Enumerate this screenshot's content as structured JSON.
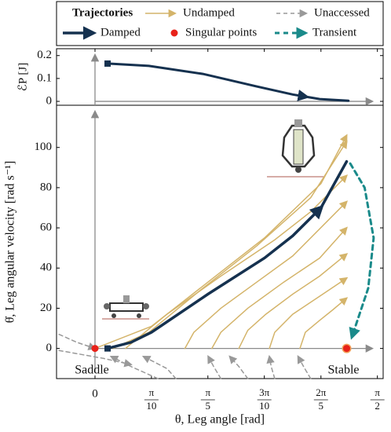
{
  "legend": {
    "title": "Trajectories"
  },
  "chart_data": [
    {
      "type": "line",
      "ylabel": "ℰP [J]",
      "xlim": [
        -0.214,
        1.603
      ],
      "ylim": [
        -0.017,
        0.23
      ],
      "yticks": [
        0,
        0.1,
        0.2
      ],
      "series": [
        {
          "color": "#15314f",
          "x": [
            0.07,
            0.3,
            0.6,
            0.9,
            1.1,
            1.25,
            1.41
          ],
          "values": [
            0.165,
            0.155,
            0.12,
            0.065,
            0.03,
            0.01,
            0.003
          ]
        }
      ]
    },
    {
      "type": "phase",
      "xlabel": "θ, Leg angle [rad]",
      "ylabel": "θ̇, Leg angular velocity [rad s⁻¹]",
      "xlim": [
        -0.214,
        1.603
      ],
      "ylim": [
        -15,
        121
      ],
      "xticks": [
        0,
        {
          "value": 0.314,
          "label": "π/10"
        },
        {
          "value": 0.628,
          "label": "π/5"
        },
        {
          "value": 0.942,
          "label": "3π/10"
        },
        {
          "value": 1.257,
          "label": "2π/5"
        },
        {
          "value": 1.571,
          "label": "π/2"
        }
      ],
      "yticks": [
        0,
        20,
        40,
        60,
        80,
        100
      ],
      "series": [
        {
          "name": "Undamped",
          "color": "#d4b46a",
          "style": "solid",
          "lines": [
            {
              "x": [
                0,
                0.314,
                0.628,
                0.943,
                1.257,
                1.4
              ],
              "values": [
                0,
                11,
                33,
                55,
                82,
                106
              ]
            },
            {
              "x": [
                0.1,
                0.3,
                0.6,
                0.9,
                1.2,
                1.4
              ],
              "values": [
                0,
                8,
                30,
                51,
                75,
                103
              ]
            },
            {
              "x": [
                0.17,
                0.25,
                0.4,
                0.7,
                1.0,
                1.2,
                1.4
              ],
              "values": [
                0,
                6,
                17,
                36,
                54,
                68,
                86
              ]
            },
            {
              "x": [
                0.5,
                0.55,
                0.7,
                0.9,
                1.1,
                1.4
              ],
              "values": [
                0,
                8,
                20,
                33,
                46,
                73
              ]
            },
            {
              "x": [
                0.65,
                0.7,
                0.85,
                1.05,
                1.25,
                1.4
              ],
              "values": [
                0,
                8,
                20,
                33,
                45,
                60
              ]
            },
            {
              "x": [
                0.8,
                0.85,
                0.95,
                1.1,
                1.25,
                1.4
              ],
              "values": [
                0,
                9,
                17,
                27,
                36,
                47
              ]
            },
            {
              "x": [
                0.97,
                1.0,
                1.1,
                1.25,
                1.4
              ],
              "values": [
                0,
                8,
                17,
                26,
                35
              ]
            },
            {
              "x": [
                1.14,
                1.17,
                1.25,
                1.32,
                1.4
              ],
              "values": [
                0,
                8,
                14,
                19,
                25
              ]
            }
          ]
        },
        {
          "name": "Unaccessed",
          "color": "#999999",
          "style": "dashed",
          "lines": [
            {
              "x": [
                -0.2,
                -0.1,
                0.0
              ],
              "values": [
                7,
                3,
                0
              ]
            },
            {
              "x": [
                0.35,
                0.2,
                0.09
              ],
              "values": [
                -15,
                -9,
                -4
              ]
            },
            {
              "x": [
                -0.2,
                0.05,
                0.2
              ],
              "values": [
                -1,
                -5,
                -8
              ]
            },
            {
              "x": [
                0.45,
                0.4,
                0.27
              ],
              "values": [
                -15,
                -10,
                -4
              ]
            },
            {
              "x": [
                0.7,
                0.66,
                0.63
              ],
              "values": [
                -15,
                -9,
                -4
              ]
            },
            {
              "x": [
                0.85,
                0.8,
                0.75
              ],
              "values": [
                -15,
                -9,
                -4
              ]
            },
            {
              "x": [
                1.0,
                0.98,
                0.97
              ],
              "values": [
                -15,
                -9,
                -4
              ]
            },
            {
              "x": [
                1.2,
                1.16,
                1.13
              ],
              "values": [
                -15,
                -9,
                -4
              ]
            }
          ]
        },
        {
          "name": "Damped",
          "color": "#15314f",
          "style": "thick",
          "lines": [
            {
              "x": [
                0.07,
                0.2,
                0.314,
                0.628,
                0.943,
                1.1,
                1.257,
                1.4
              ],
              "values": [
                0,
                3,
                8,
                27,
                45,
                56,
                70,
                93
              ]
            }
          ]
        },
        {
          "name": "Singular points",
          "color": "#e8221a",
          "style": "points",
          "x": [
            0,
            1.4
          ],
          "values": [
            0,
            0
          ],
          "point_labels": [
            "Saddle",
            "Stable"
          ]
        },
        {
          "name": "Transient",
          "color": "#1a8a8a",
          "style": "transient",
          "lines": [
            {
              "x": [
                1.42,
                1.5,
                1.55,
                1.52,
                1.43
              ],
              "values": [
                92,
                80,
                55,
                30,
                6
              ]
            }
          ]
        }
      ]
    }
  ]
}
